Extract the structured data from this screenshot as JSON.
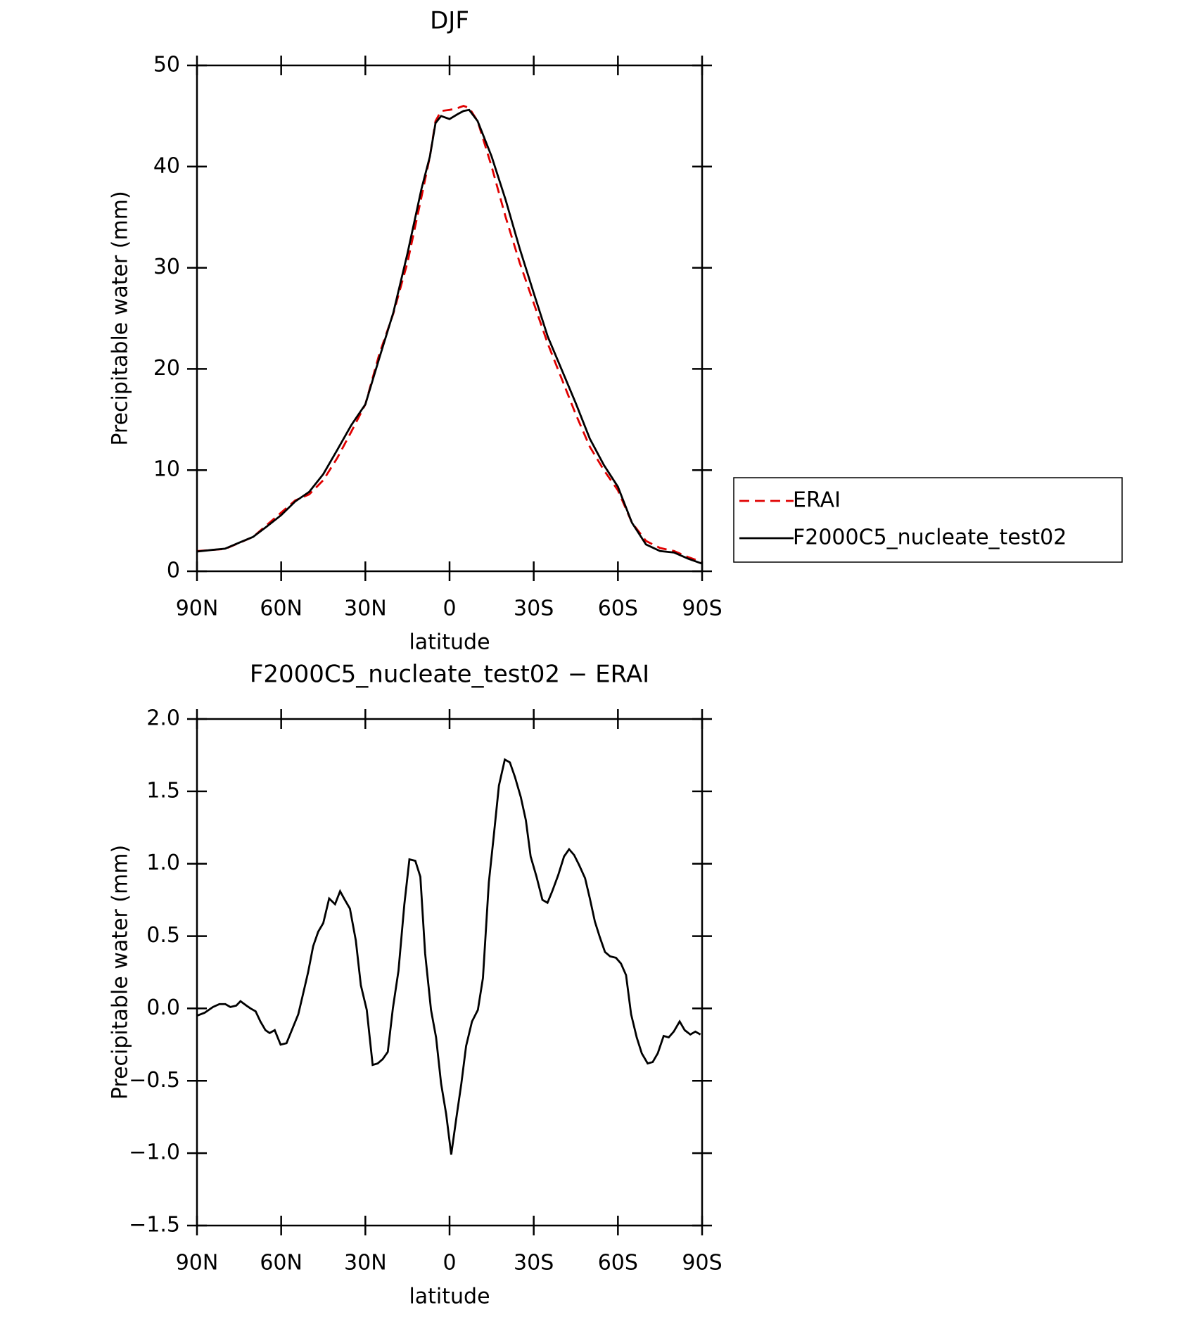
{
  "chart_data": [
    {
      "type": "line",
      "title": "DJF",
      "x_label": "latitude",
      "y_label": "Precipitable water (mm)",
      "x": [
        90,
        85,
        80,
        75,
        70,
        65,
        60,
        55,
        50,
        45,
        40,
        35,
        30,
        25,
        20,
        15,
        10,
        7,
        5,
        3,
        0,
        -3,
        -5,
        -7,
        -10,
        -15,
        -20,
        -25,
        -30,
        -35,
        -40,
        -45,
        -50,
        -55,
        -60,
        -65,
        -70,
        -75,
        -80,
        -85,
        -90
      ],
      "series": [
        {
          "name": "ERAI",
          "color": "#e00000",
          "line_style": "dashed",
          "values": [
            2.0,
            2.1,
            2.2,
            2.8,
            3.4,
            4.6,
            5.8,
            7.0,
            7.6,
            9.0,
            11.2,
            13.8,
            16.5,
            21.5,
            25.5,
            30.5,
            37.0,
            41.0,
            44.5,
            45.5,
            45.6,
            45.8,
            46.0,
            45.8,
            44.5,
            40.0,
            35.0,
            30.5,
            26.5,
            22.5,
            19.0,
            15.5,
            12.3,
            10.0,
            8.0,
            4.8,
            3.0,
            2.3,
            2.0,
            1.4,
            0.9
          ]
        },
        {
          "name": "F2000C5_nucleate_test02",
          "color": "#000000",
          "line_style": "solid",
          "values": [
            1.95,
            2.1,
            2.23,
            2.82,
            3.4,
            4.45,
            5.55,
            6.9,
            7.85,
            9.6,
            12.0,
            14.45,
            16.5,
            21.1,
            25.6,
            31.4,
            37.8,
            41.0,
            44.3,
            45.0,
            44.7,
            45.2,
            45.5,
            45.6,
            44.5,
            41.0,
            36.7,
            31.9,
            27.5,
            23.2,
            19.9,
            16.6,
            13.1,
            10.5,
            8.35,
            4.8,
            2.65,
            2.0,
            1.85,
            1.25,
            0.75
          ]
        }
      ],
      "xlim": [
        90,
        -90
      ],
      "xticks": [
        {
          "value": 90,
          "label": "90N"
        },
        {
          "value": 60,
          "label": "60N"
        },
        {
          "value": 30,
          "label": "30N"
        },
        0,
        {
          "value": -30,
          "label": "30S"
        },
        {
          "value": -60,
          "label": "60S"
        },
        {
          "value": -90,
          "label": "90S"
        }
      ],
      "ylim": [
        0,
        50
      ],
      "yticks": [
        0,
        10,
        20,
        30,
        40,
        50
      ],
      "legend": "right"
    },
    {
      "type": "line",
      "title": "F2000C5_nucleate_test02 − ERAI",
      "x_label": "latitude",
      "y_label": "Precipitable water (mm)",
      "x": [
        90,
        87.3,
        84.3,
        82,
        79.9,
        78.1,
        76,
        74.5,
        72.4,
        70.9,
        69.1,
        67.4,
        65.6,
        64.1,
        62.3,
        60.2,
        58.1,
        56,
        53.9,
        52.2,
        50.4,
        48.6,
        46.8,
        45,
        42.9,
        40.8,
        39,
        37.3,
        35.5,
        33.4,
        31.6,
        29.5,
        27.4,
        25.6,
        23.8,
        22,
        20.2,
        18.2,
        16.1,
        14.3,
        12.2,
        10.4,
        8.7,
        6.6,
        4.8,
        3,
        1.2,
        -0.6,
        -2.4,
        -4.2,
        -5.9,
        -8,
        -10.1,
        -11.9,
        -14,
        -15.8,
        -17.6,
        -19.7,
        -21.5,
        -23.3,
        -25.4,
        -27.2,
        -28.9,
        -31,
        -33.1,
        -34.9,
        -36.6,
        -38.7,
        -40.8,
        -42.6,
        -44.4,
        -46.2,
        -48.3,
        -50,
        -51.8,
        -53.6,
        -55.4,
        -57.2,
        -59.3,
        -61.1,
        -62.9,
        -64.7,
        -66.7,
        -68.5,
        -70.6,
        -72.4,
        -74.2,
        -76.3,
        -78.1,
        -79.9,
        -82,
        -83.8,
        -85.8,
        -87.6,
        -89.4
      ],
      "color": "#000000",
      "values": [
        -0.05,
        -0.03,
        0.01,
        0.03,
        0.03,
        0.01,
        0.02,
        0.05,
        0.02,
        0.0,
        -0.02,
        -0.09,
        -0.15,
        -0.17,
        -0.15,
        -0.25,
        -0.24,
        -0.14,
        -0.04,
        0.1,
        0.25,
        0.43,
        0.53,
        0.59,
        0.76,
        0.72,
        0.81,
        0.75,
        0.69,
        0.47,
        0.16,
        -0.01,
        -0.39,
        -0.38,
        -0.35,
        -0.3,
        0.0,
        0.26,
        0.72,
        1.03,
        1.02,
        0.91,
        0.38,
        -0.01,
        -0.2,
        -0.52,
        -0.73,
        -1.01,
        -0.76,
        -0.52,
        -0.26,
        -0.09,
        -0.01,
        0.21,
        0.87,
        1.2,
        1.54,
        1.72,
        1.7,
        1.6,
        1.46,
        1.3,
        1.05,
        0.91,
        0.75,
        0.73,
        0.81,
        0.92,
        1.05,
        1.1,
        1.06,
        0.99,
        0.9,
        0.76,
        0.6,
        0.49,
        0.39,
        0.36,
        0.35,
        0.31,
        0.23,
        -0.04,
        -0.2,
        -0.31,
        -0.38,
        -0.37,
        -0.31,
        -0.19,
        -0.2,
        -0.16,
        -0.09,
        -0.15,
        -0.18,
        -0.16,
        -0.18
      ],
      "xlim": [
        90,
        -90
      ],
      "xticks": [
        {
          "value": 90,
          "label": "90N"
        },
        {
          "value": 60,
          "label": "60N"
        },
        {
          "value": 30,
          "label": "30N"
        },
        0,
        {
          "value": -30,
          "label": "30S"
        },
        {
          "value": -60,
          "label": "60S"
        },
        {
          "value": -90,
          "label": "90S"
        }
      ],
      "ylim": [
        -1.5,
        2.0
      ],
      "yticks": [
        {
          "value": -1.5,
          "label": "−1.5"
        },
        {
          "value": -1.0,
          "label": "−1.0"
        },
        {
          "value": -0.5,
          "label": "−0.5"
        },
        {
          "value": 0,
          "label": "0.0"
        },
        0.5,
        {
          "value": 1.0,
          "label": "1.0"
        },
        1.5,
        {
          "value": 2.0,
          "label": "2.0"
        }
      ]
    }
  ]
}
